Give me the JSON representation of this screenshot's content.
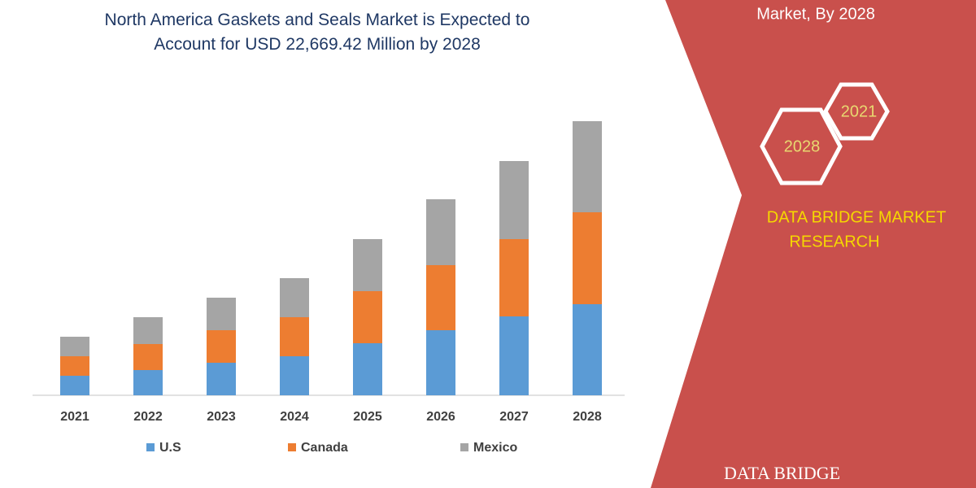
{
  "chart_data": {
    "type": "stacked_bar",
    "title": "North America Gaskets and Seals Market is Expected to Account for USD 22,669.42 Million by 2028",
    "categories": [
      "2021",
      "2022",
      "2023",
      "2024",
      "2025",
      "2026",
      "2027",
      "2028"
    ],
    "series": [
      {
        "name": "U.S",
        "color": "#5b9bd5",
        "values": [
          24,
          31,
          40,
          48,
          64,
          80,
          97,
          112
        ]
      },
      {
        "name": "Canada",
        "color": "#ed7d31",
        "values": [
          24,
          32,
          40,
          48,
          64,
          80,
          95,
          113
        ]
      },
      {
        "name": "Mexico",
        "color": "#a5a5a5",
        "values": [
          24,
          33,
          40,
          48,
          64,
          81,
          96,
          112
        ]
      }
    ]
  },
  "panel": {
    "heading": "Market, By 2028",
    "hex_small": "2021",
    "hex_large": "2028",
    "brand": "DATA BRIDGE MARKET RESEARCH",
    "logo": "DATA BRIDGE"
  }
}
